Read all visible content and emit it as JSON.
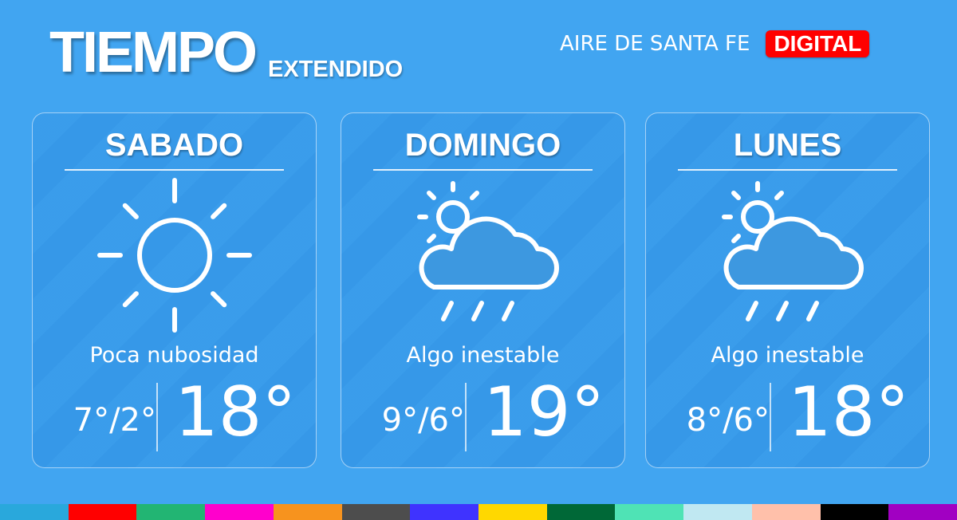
{
  "header": {
    "title": "TIEMPO",
    "subtitle": "EXTENDIDO",
    "brand": "AIRE DE SANTA FE",
    "badge": "DIGITAL"
  },
  "days": [
    {
      "day": "SABADO",
      "icon": "sun-icon",
      "desc": "Poca nubosidad",
      "minmax": "7°/2°",
      "temp": "18°"
    },
    {
      "day": "DOMINGO",
      "icon": "partly-cloudy-rain-icon",
      "desc": "Algo inestable",
      "minmax": "9°/6°",
      "temp": "19°"
    },
    {
      "day": "LUNES",
      "icon": "partly-cloudy-rain-icon",
      "desc": "Algo inestable",
      "minmax": "8°/6°",
      "temp": "18°"
    }
  ],
  "colors": {
    "background": "#41a5f1",
    "badge": "#ff0000",
    "strip": [
      "#29a8dc",
      "#ff0000",
      "#22b573",
      "#ff00cc",
      "#f7931e",
      "#4d4d4d",
      "#3f33ff",
      "#ffd800",
      "#006837",
      "#4fe3b5",
      "#c0e8f2",
      "#ffc0aa",
      "#000000",
      "#a100c2"
    ]
  }
}
